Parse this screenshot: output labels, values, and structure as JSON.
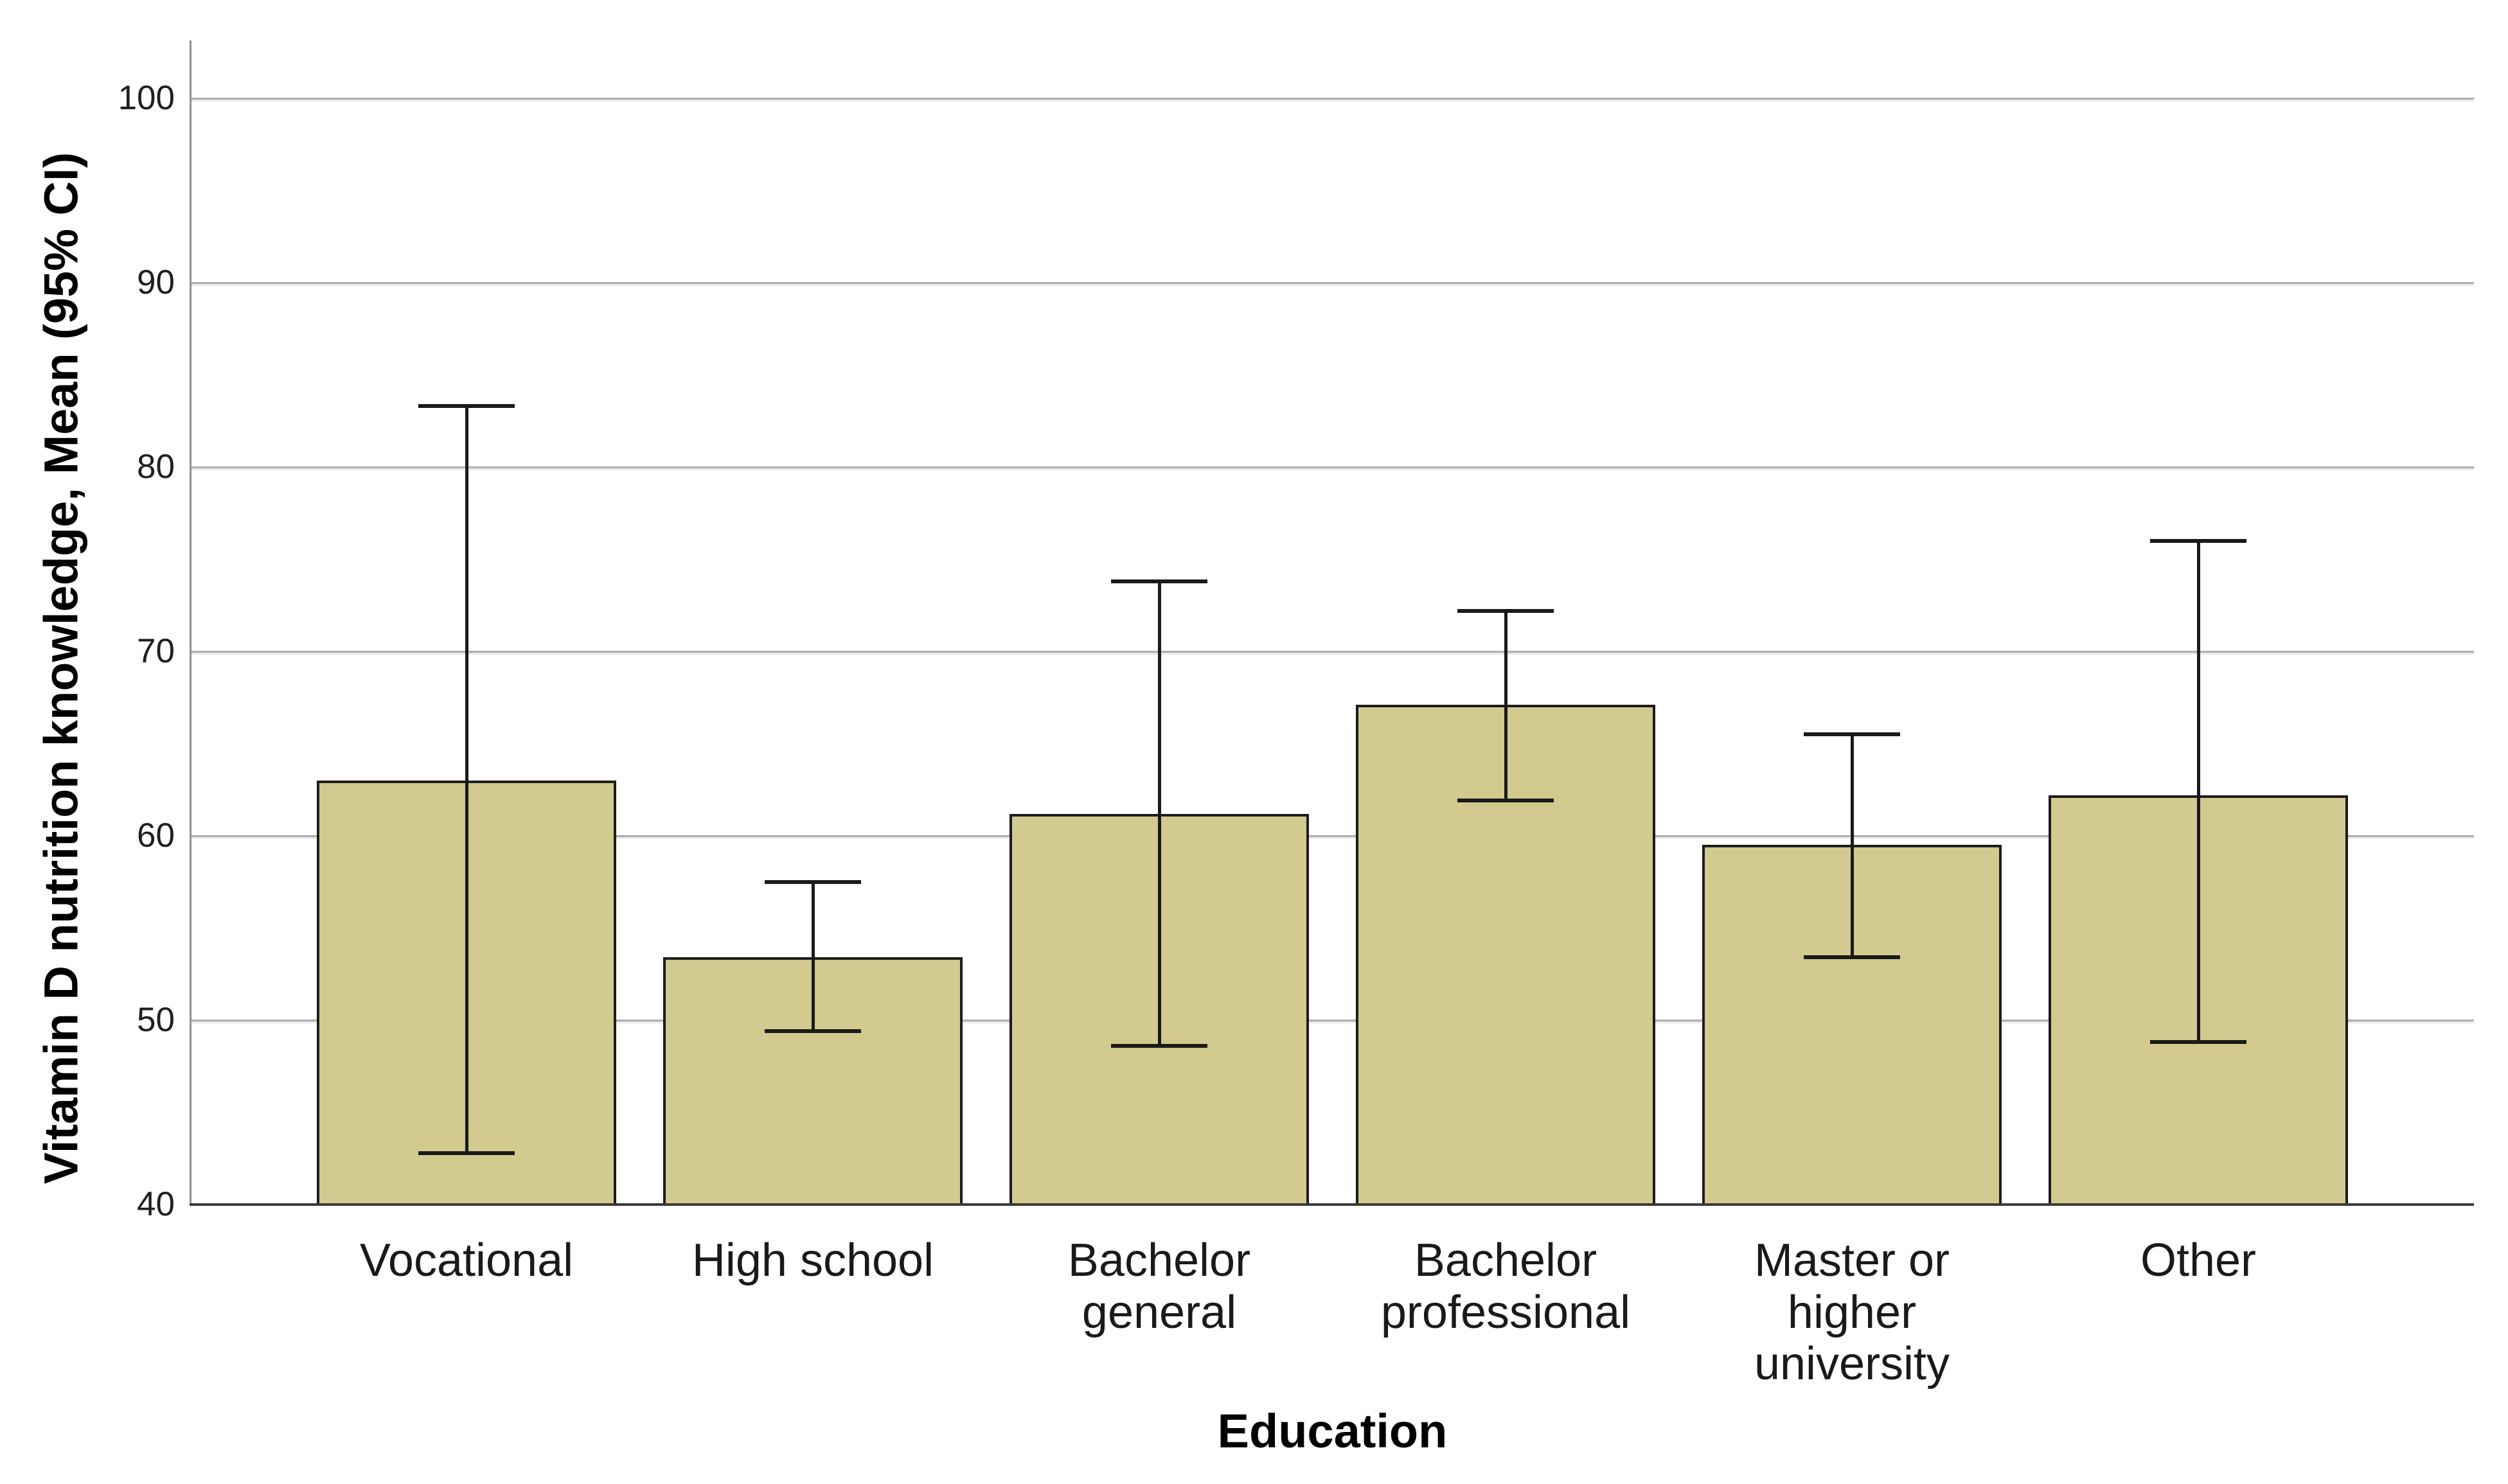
{
  "chart_data": {
    "type": "bar",
    "title": "",
    "xlabel": "Education",
    "ylabel": "Vitamin D nutrition knowledge, Mean (95% CI)",
    "categories": [
      "Vocational",
      "High school",
      "Bachelor general",
      "Bachelor professional",
      "Master or higher university",
      "Other"
    ],
    "category_label_lines": [
      "Vocational",
      "High school",
      "Bachelor\ngeneral",
      "Bachelor\nprofessional",
      "Master or\nhigher\nuniversity",
      "Other"
    ],
    "series": [
      {
        "name": "Mean",
        "values": [
          63.0,
          53.4,
          61.2,
          67.1,
          59.5,
          62.2
        ]
      },
      {
        "name": "95% CI lower",
        "values": [
          42.8,
          49.4,
          48.6,
          61.9,
          53.4,
          48.8
        ]
      },
      {
        "name": "95% CI upper",
        "values": [
          83.3,
          57.5,
          73.8,
          72.2,
          65.5,
          76.0
        ]
      }
    ],
    "ylim": [
      40,
      100
    ],
    "yticks": [
      40,
      50,
      60,
      70,
      80,
      90,
      100
    ],
    "grid": true,
    "legend": "none",
    "colors": {
      "bar_fill": "#d2ca8e",
      "bar_border": "#1c1c1c",
      "error_bar": "#1a1a1a",
      "gridline": "#aeaeae",
      "y_axis_line": "#8f8f8f",
      "x_axis_line": "#3a3a3a",
      "text": "#1a1a1a"
    }
  }
}
